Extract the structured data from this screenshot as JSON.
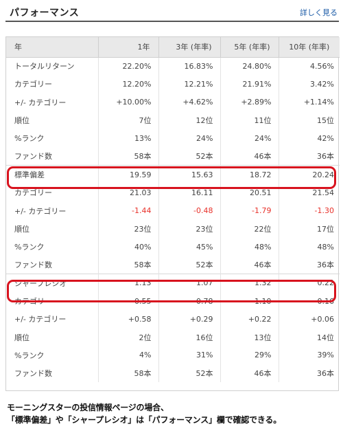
{
  "header": {
    "title": "パフォーマンス",
    "more_link": "詳しく見る"
  },
  "table": {
    "columns": [
      "年",
      "1年",
      "3年 (年率)",
      "5年 (年率)",
      "10年 (年率)"
    ],
    "rows": [
      [
        "トータルリターン",
        "22.20%",
        "16.83%",
        "24.80%",
        "4.56%"
      ],
      [
        "カテゴリー",
        "12.20%",
        "12.21%",
        "21.91%",
        "3.42%"
      ],
      [
        "+/- カテゴリー",
        "+10.00%",
        "+4.62%",
        "+2.89%",
        "+1.14%"
      ],
      [
        "順位",
        "7位",
        "12位",
        "11位",
        "15位"
      ],
      [
        "%ランク",
        "13%",
        "24%",
        "24%",
        "42%"
      ],
      [
        "ファンド数",
        "58本",
        "52本",
        "46本",
        "36本"
      ],
      [
        "標準偏差",
        "19.59",
        "15.63",
        "18.72",
        "20.24"
      ],
      [
        "カテゴリー",
        "21.03",
        "16.11",
        "20.51",
        "21.54"
      ],
      [
        "+/- カテゴリー",
        "-1.44",
        "-0.48",
        "-1.79",
        "-1.30"
      ],
      [
        "順位",
        "23位",
        "23位",
        "22位",
        "17位"
      ],
      [
        "%ランク",
        "40%",
        "45%",
        "48%",
        "48%"
      ],
      [
        "ファンド数",
        "58本",
        "52本",
        "46本",
        "36本"
      ],
      [
        "シャープレシオ",
        "1.13",
        "1.07",
        "1.32",
        "0.22"
      ],
      [
        "カテゴリー",
        "0.55",
        "0.78",
        "1.10",
        "0.16"
      ],
      [
        "+/- カテゴリー",
        "+0.58",
        "+0.29",
        "+0.22",
        "+0.06"
      ],
      [
        "順位",
        "2位",
        "16位",
        "13位",
        "14位"
      ],
      [
        "%ランク",
        "4%",
        "31%",
        "29%",
        "39%"
      ],
      [
        "ファンド数",
        "58本",
        "52本",
        "46本",
        "36本"
      ]
    ]
  },
  "caption": {
    "line1": "モーニングスターの投信情報ページの場合、",
    "line2": "「標準偏差」や「シャープレシオ」は「パフォーマンス」欄で確認できる。"
  },
  "colors": {
    "negative": "#e8312a",
    "highlight": "#d8131e",
    "link": "#1a5aa6"
  }
}
